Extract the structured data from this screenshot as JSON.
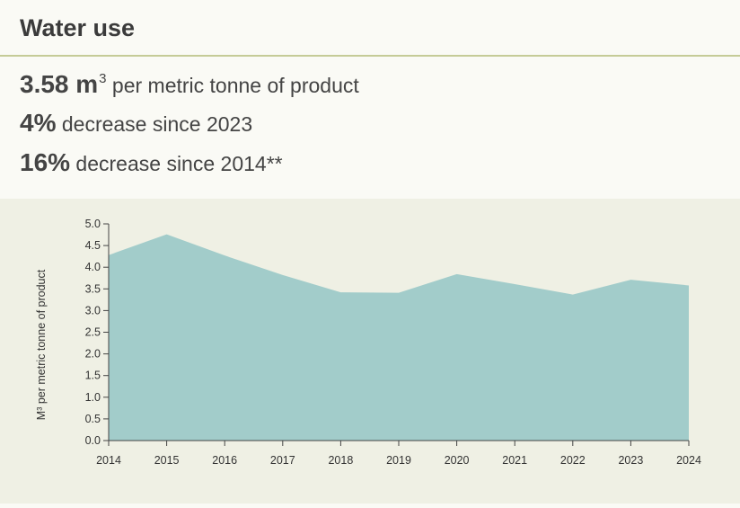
{
  "header": {
    "title": "Water use"
  },
  "stats": [
    {
      "value": "3.58 m",
      "sup": "3",
      "text": " per metric tonne of product"
    },
    {
      "value": "4%",
      "sup": "",
      "text": " decrease since 2023"
    },
    {
      "value": "16%",
      "sup": "",
      "text": " decrease since 2014**"
    }
  ],
  "colors": {
    "area": "#a2ccca",
    "panel": "#eff0e4",
    "rule": "#c5cb97"
  },
  "chart_data": {
    "type": "area",
    "title": "",
    "xlabel": "",
    "ylabel": "M³ per metric tonne of product",
    "x": [
      "2014",
      "2015",
      "2016",
      "2017",
      "2018",
      "2019",
      "2020",
      "2021",
      "2022",
      "2023",
      "2024"
    ],
    "series": [
      {
        "values": [
          4.28,
          4.76,
          4.27,
          3.82,
          3.42,
          3.41,
          3.84,
          3.61,
          3.37,
          3.71,
          3.58
        ]
      }
    ],
    "ylim": [
      0,
      5.0
    ],
    "yticks": [
      "0.0",
      "0.5",
      "1.0",
      "1.5",
      "2.0",
      "2.5",
      "3.0",
      "3.5",
      "4.0",
      "4.5",
      "5.0"
    ],
    "grid": false,
    "legend": "none"
  }
}
